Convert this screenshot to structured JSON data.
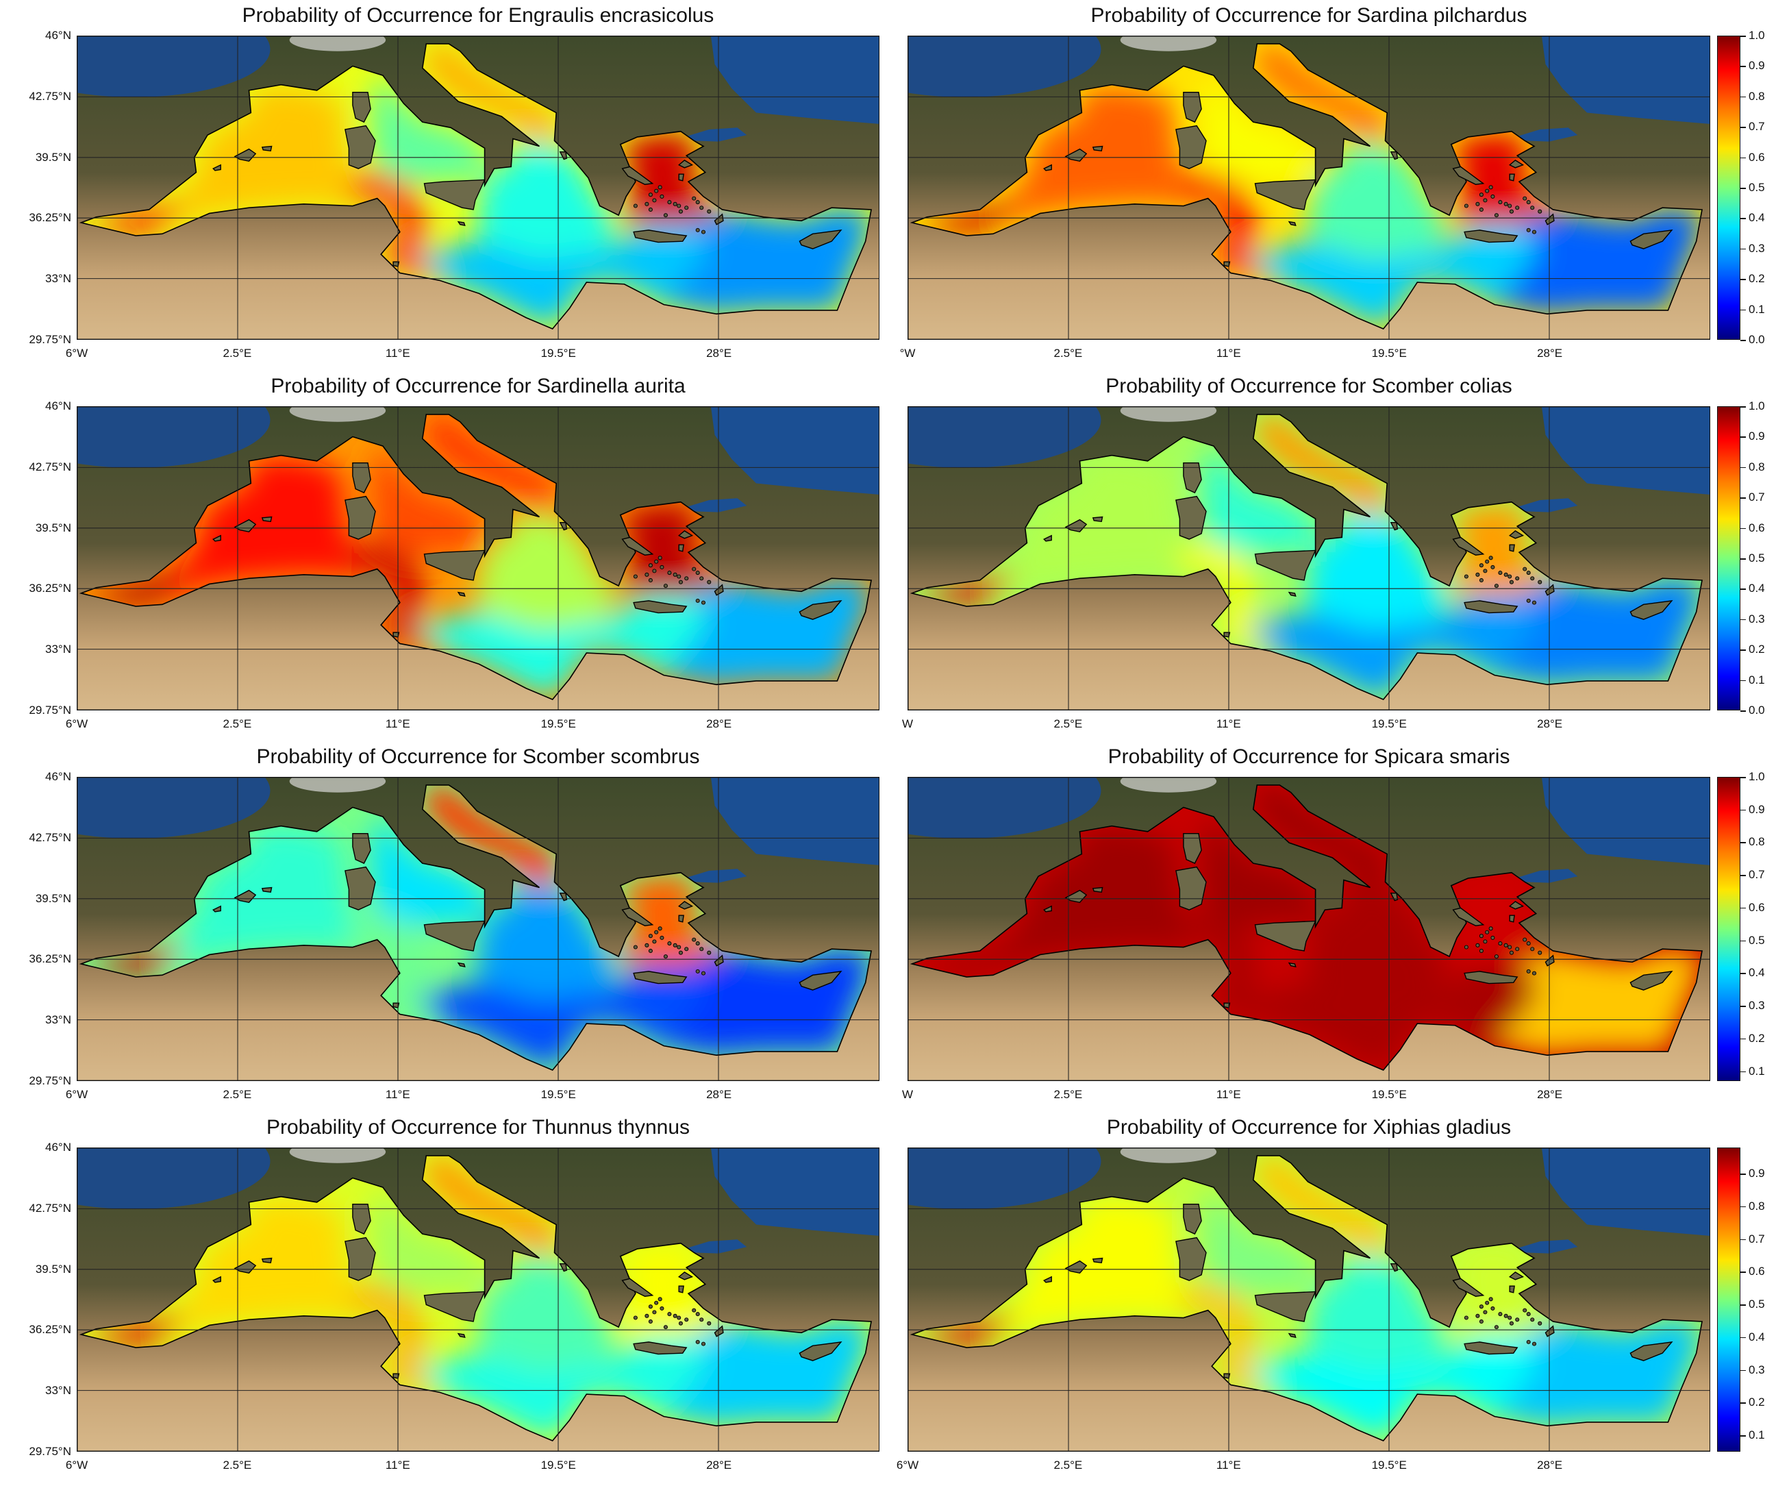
{
  "map_data": {
    "type": "geographic-map-grid",
    "region": "Mediterranean Sea",
    "latitude_ticks": [
      "46°N",
      "42.75°N",
      "39.5°N",
      "36.25°N",
      "33°N",
      "29.75°N"
    ],
    "latitude_values": [
      46,
      42.75,
      39.5,
      36.25,
      33,
      29.75
    ],
    "longitude_ticks": [
      "6°W",
      "2.5°E",
      "11°E",
      "19.5°E",
      "28°E"
    ],
    "longitude_values": [
      -6,
      2.5,
      11,
      19.5,
      28
    ],
    "extent": {
      "lon": [
        -6,
        36.5
      ],
      "lat": [
        29.75,
        46
      ]
    },
    "colormap": "jet",
    "panels": [
      {
        "title": "Probability of Occurrence for Engraulis encrasicolus",
        "first_lon_label": "6°W",
        "colorbar_ticks": []
      },
      {
        "title": "Probability of Occurrence for Sardina pilchardus",
        "first_lon_label": "°W",
        "colorbar_ticks": [
          "0.0",
          "0.1",
          "0.2",
          "0.3",
          "0.4",
          "0.5",
          "0.6",
          "0.7",
          "0.8",
          "0.9",
          "1.0"
        ],
        "colorbar_range": [
          0.0,
          1.0
        ]
      },
      {
        "title": "Probability of Occurrence for Sardinella aurita",
        "first_lon_label": "6°W",
        "colorbar_ticks": []
      },
      {
        "title": "Probability of Occurrence for Scomber colias",
        "first_lon_label": "W",
        "colorbar_ticks": [
          "0.0",
          "0.1",
          "0.2",
          "0.3",
          "0.4",
          "0.5",
          "0.6",
          "0.7",
          "0.8",
          "0.9",
          "1.0"
        ],
        "colorbar_range": [
          0.0,
          1.0
        ]
      },
      {
        "title": "Probability of Occurrence for Scomber scombrus",
        "first_lon_label": "6°W",
        "colorbar_ticks": []
      },
      {
        "title": "Probability of Occurrence for Spicara smaris",
        "first_lon_label": "W",
        "colorbar_ticks": [
          "0.1",
          "0.2",
          "0.3",
          "0.4",
          "0.5",
          "0.6",
          "0.7",
          "0.8",
          "0.9",
          "1.0"
        ],
        "colorbar_range": [
          0.07,
          1.0
        ]
      },
      {
        "title": "Probability of Occurrence for Thunnus thynnus",
        "first_lon_label": "6°W",
        "colorbar_ticks": []
      },
      {
        "title": "Probability of Occurrence for Xiphias gladius",
        "first_lon_label": "6°W",
        "colorbar_ticks": [
          "0.1",
          "0.2",
          "0.3",
          "0.4",
          "0.5",
          "0.6",
          "0.7",
          "0.8",
          "0.9"
        ],
        "colorbar_range": [
          0.05,
          0.98
        ]
      }
    ],
    "zones": [
      "alboran",
      "west_med",
      "tyrrhenian",
      "adriatic",
      "aegean",
      "ionian",
      "central",
      "levant",
      "tunisia_shelf"
    ],
    "panel_zone_values": [
      [
        0.85,
        0.68,
        0.47,
        0.7,
        0.92,
        0.4,
        0.32,
        0.27,
        0.82
      ],
      [
        0.92,
        0.78,
        0.62,
        0.76,
        0.9,
        0.45,
        0.33,
        0.22,
        0.88
      ],
      [
        0.95,
        0.86,
        0.8,
        0.82,
        0.94,
        0.55,
        0.4,
        0.3,
        0.92
      ],
      [
        0.9,
        0.55,
        0.42,
        0.72,
        0.72,
        0.36,
        0.28,
        0.25,
        0.62
      ],
      [
        0.92,
        0.42,
        0.35,
        0.82,
        0.78,
        0.28,
        0.2,
        0.18,
        0.48
      ],
      [
        0.96,
        0.97,
        0.97,
        0.97,
        0.92,
        0.96,
        0.96,
        0.68,
        0.96
      ],
      [
        0.9,
        0.66,
        0.54,
        0.72,
        0.62,
        0.45,
        0.4,
        0.33,
        0.7
      ],
      [
        0.9,
        0.62,
        0.5,
        0.68,
        0.58,
        0.42,
        0.38,
        0.32,
        0.68
      ]
    ]
  }
}
